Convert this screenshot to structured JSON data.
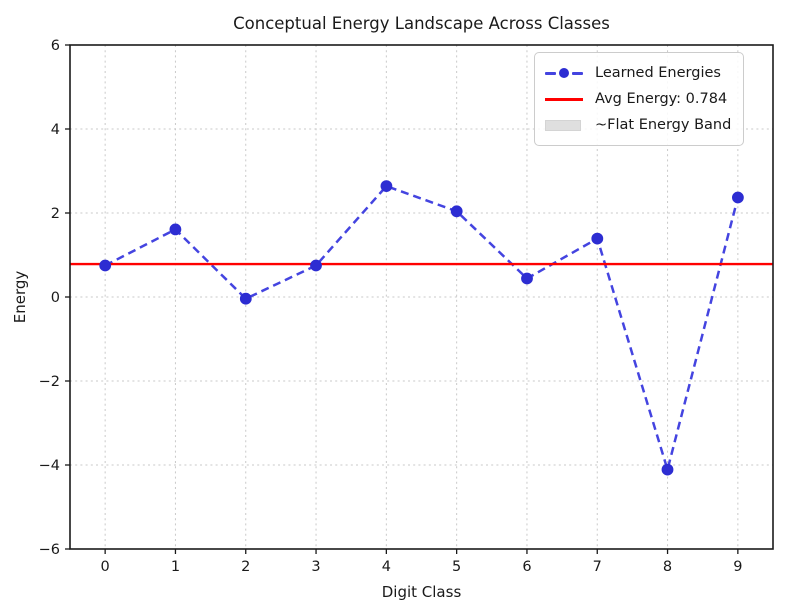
{
  "chart_data": {
    "type": "line",
    "title": "Conceptual Energy Landscape Across Classes",
    "xlabel": "Digit Class",
    "ylabel": "Energy",
    "x": [
      0,
      1,
      2,
      3,
      4,
      5,
      6,
      7,
      8,
      9
    ],
    "series": [
      {
        "name": "Learned Energies",
        "values": [
          0.75,
          1.61,
          -0.04,
          0.75,
          2.64,
          2.04,
          0.44,
          1.39,
          -4.11,
          2.37
        ],
        "style": "dashed-line-with-circle-markers"
      }
    ],
    "avg_line": {
      "value": 0.784,
      "label": "Avg Energy: 0.784"
    },
    "xlim": [
      -0.5,
      9.5
    ],
    "ylim": [
      -6,
      6
    ],
    "xticks": {
      "values": [
        0,
        1,
        2,
        3,
        4,
        5,
        6,
        7,
        8,
        9
      ],
      "labels": [
        "0",
        "1",
        "2",
        "3",
        "4",
        "5",
        "6",
        "7",
        "8",
        "9"
      ]
    },
    "yticks": {
      "values": [
        6,
        4,
        2,
        0,
        -2,
        -4,
        -6
      ],
      "labels": [
        "6",
        "4",
        "2",
        "0",
        "−2",
        "−4",
        "−6"
      ]
    },
    "grid": true,
    "legend": {
      "position": "upper right",
      "items": [
        {
          "label": "Learned Energies",
          "swatch": "dashed-line-marker"
        },
        {
          "label": "Avg Energy: 0.784",
          "swatch": "solid-line"
        },
        {
          "label": "~Flat Energy Band",
          "swatch": "patch"
        }
      ]
    },
    "colors": {
      "series_line": "#4444e0",
      "series_marker": "#2d2dd2",
      "avg_line": "#ff0000",
      "grid": "#c9c9c9",
      "band_patch": "#dfdfdf",
      "spine": "#1a1a1a",
      "text": "#1a1a1a"
    }
  }
}
